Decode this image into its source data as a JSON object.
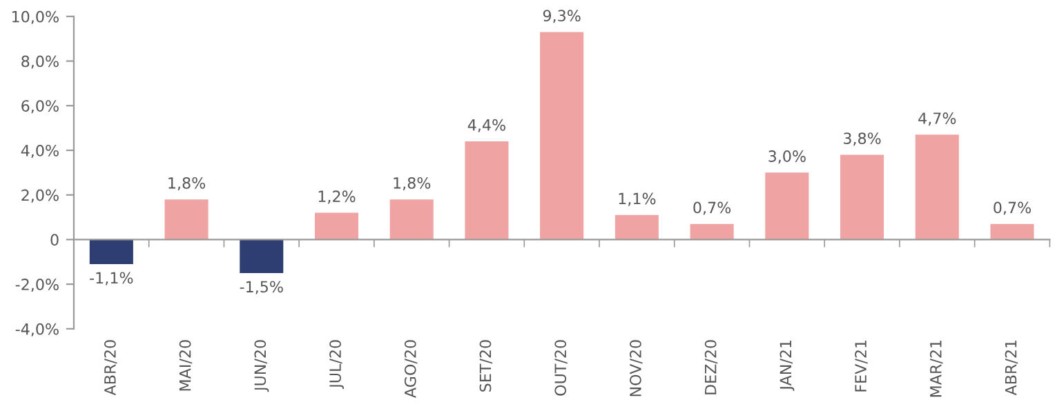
{
  "chart_data": {
    "type": "bar",
    "categories": [
      "ABR/20",
      "MAI/20",
      "JUN/20",
      "JUL/20",
      "AGO/20",
      "SET/20",
      "OUT/20",
      "NOV/20",
      "DEZ/20",
      "JAN/21",
      "FEV/21",
      "MAR/21",
      "ABR/21"
    ],
    "values": [
      -1.1,
      1.8,
      -1.5,
      1.2,
      1.8,
      4.4,
      9.3,
      1.1,
      0.7,
      3.0,
      3.8,
      4.7,
      0.7
    ],
    "colors": [
      "#2e3d72",
      "#f0a3a3",
      "#2e3d72",
      "#f0a3a3",
      "#f0a3a3",
      "#f0a3a3",
      "#f0a3a3",
      "#f0a3a3",
      "#f0a3a3",
      "#f0a3a3",
      "#f0a3a3",
      "#f0a3a3",
      "#f0a3a3"
    ],
    "value_labels": [
      "-1,1%",
      "1,8%",
      "-1,5%",
      "1,2%",
      "1,8%",
      "4,4%",
      "9,3%",
      "1,1%",
      "0,7%",
      "3,0%",
      "3,8%",
      "4,7%",
      "0,7%"
    ],
    "ylim": [
      -4,
      10
    ],
    "yticks": [
      {
        "value": -4,
        "label": "-4,0%"
      },
      {
        "value": -2,
        "label": "-2,0%"
      },
      0,
      {
        "value": 2,
        "label": "2,0%"
      },
      {
        "value": 4,
        "label": "4,0%"
      },
      {
        "value": 6,
        "label": "6,0%"
      },
      {
        "value": 8,
        "label": "8,0%"
      },
      {
        "value": 10,
        "label": "10,0%"
      }
    ],
    "legend": false
  }
}
